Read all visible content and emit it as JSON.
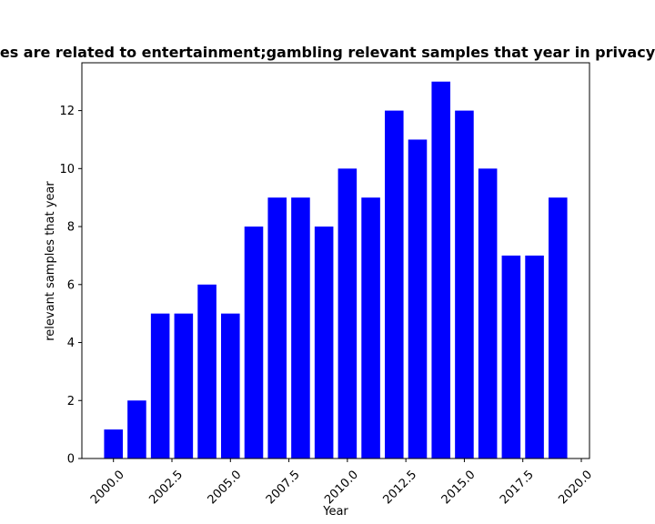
{
  "chart_data": {
    "type": "bar",
    "title": "es are related to entertainment;gambling relevant samples that year in privacy",
    "xlabel": "Year",
    "ylabel": "relevant samples that year",
    "x": [
      2000,
      2001,
      2002,
      2003,
      2004,
      2005,
      2006,
      2007,
      2008,
      2009,
      2010,
      2011,
      2012,
      2013,
      2014,
      2015,
      2016,
      2017,
      2018,
      2019
    ],
    "values": [
      1,
      2,
      5,
      5,
      6,
      5,
      8,
      9,
      9,
      8,
      10,
      9,
      12,
      11,
      13,
      12,
      10,
      7,
      7,
      9
    ],
    "xlim": [
      1998.65,
      2020.35
    ],
    "ylim": [
      0,
      13.65
    ],
    "xticks": [
      2000.0,
      2002.5,
      2005.0,
      2007.5,
      2010.0,
      2012.5,
      2015.0,
      2017.5,
      2020.0
    ],
    "xtick_labels": [
      "2000.0",
      "2002.5",
      "2005.0",
      "2007.5",
      "2010.0",
      "2012.5",
      "2015.0",
      "2017.5",
      "2020.0"
    ],
    "yticks": [
      0,
      2,
      4,
      6,
      8,
      10,
      12
    ],
    "ytick_labels": [
      "0",
      "2",
      "4",
      "6",
      "8",
      "10",
      "12"
    ],
    "bar_color": "#0000ff",
    "grid": false,
    "legend": "none"
  }
}
